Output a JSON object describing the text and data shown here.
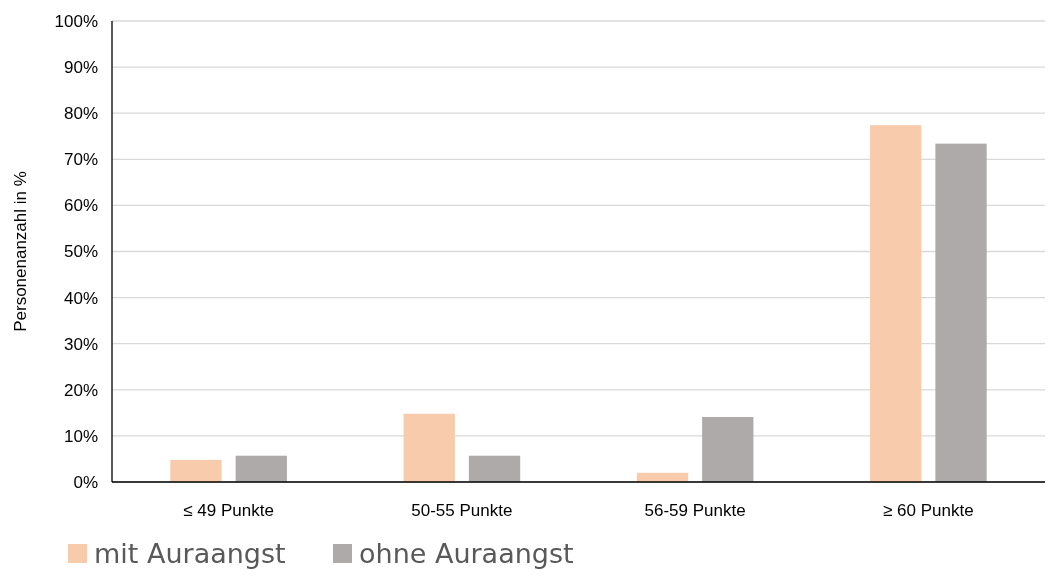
{
  "chart_data": {
    "type": "bar",
    "ylabel": "Personenanzahl  in %",
    "categories": [
      "≤ 49 Punkte",
      "50-55 Punkte",
      "56-59 Punkte",
      "≥ 60 Punkte"
    ],
    "series": [
      {
        "name": "mit Auraangst",
        "color": "#f7cbac",
        "values": [
          4.8,
          14.8,
          2.0,
          77.4
        ]
      },
      {
        "name": "ohne Auraangst",
        "color": "#aeaaaa",
        "values": [
          5.7,
          5.7,
          14.1,
          73.4
        ]
      }
    ],
    "ylim": [
      0,
      100
    ],
    "yticks": [
      {
        "value": 0,
        "label": "0%"
      },
      {
        "value": 10,
        "label": "10%"
      },
      {
        "value": 20,
        "label": "20%"
      },
      {
        "value": 30,
        "label": "30%"
      },
      {
        "value": 40,
        "label": "40%"
      },
      {
        "value": 50,
        "label": "50%"
      },
      {
        "value": 60,
        "label": "60%"
      },
      {
        "value": 70,
        "label": "70%"
      },
      {
        "value": 80,
        "label": "80%"
      },
      {
        "value": 90,
        "label": "90%"
      },
      {
        "value": 100,
        "label": "100%"
      }
    ],
    "grid": "y",
    "legend": "bottom left"
  }
}
